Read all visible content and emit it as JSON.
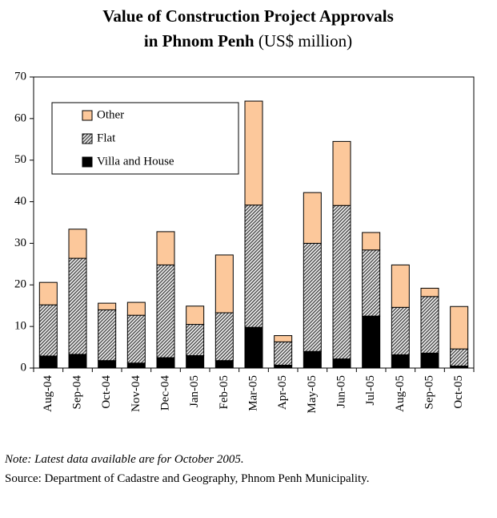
{
  "chart_data": {
    "type": "stacked_bar",
    "title_lines": [
      "Value of Construction Project Approvals",
      "in Phnom Penh"
    ],
    "units": "(US$ million)",
    "categories": [
      "Aug-04",
      "Sep-04",
      "Oct-04",
      "Nov-04",
      "Dec-04",
      "Jan-05",
      "Feb-05",
      "Mar-05",
      "Apr-05",
      "May-05",
      "Jun-05",
      "Jul-05",
      "Aug-05",
      "Sep-05",
      "Oct-05"
    ],
    "series": [
      {
        "name": "Villa and House",
        "color": "#000000",
        "values": [
          2.9,
          3.3,
          1.8,
          1.2,
          2.5,
          3.0,
          1.8,
          9.8,
          0.7,
          4.0,
          2.2,
          12.5,
          3.2,
          3.6,
          0.5
        ]
      },
      {
        "name": "Flat",
        "color": "#808080",
        "pattern": "hatch",
        "values": [
          12.3,
          23.1,
          12.2,
          11.5,
          22.3,
          7.5,
          11.5,
          29.4,
          5.6,
          26.0,
          36.9,
          15.9,
          11.4,
          13.6,
          4.1
        ]
      },
      {
        "name": "Other",
        "color": "#fcc89b",
        "values": [
          5.4,
          7.0,
          1.6,
          3.1,
          8.0,
          4.4,
          13.9,
          25.0,
          1.5,
          12.2,
          15.4,
          4.2,
          10.2,
          2.0,
          10.2
        ]
      }
    ],
    "ylim": [
      0,
      70
    ],
    "yticks": [
      0,
      10,
      20,
      30,
      40,
      50,
      60,
      70
    ],
    "grid": false,
    "legend": "upper left",
    "note": "Note: Latest data available are for October 2005.",
    "source": "Source: Department of Cadastre and Geography, Phnom Penh Municipality."
  }
}
